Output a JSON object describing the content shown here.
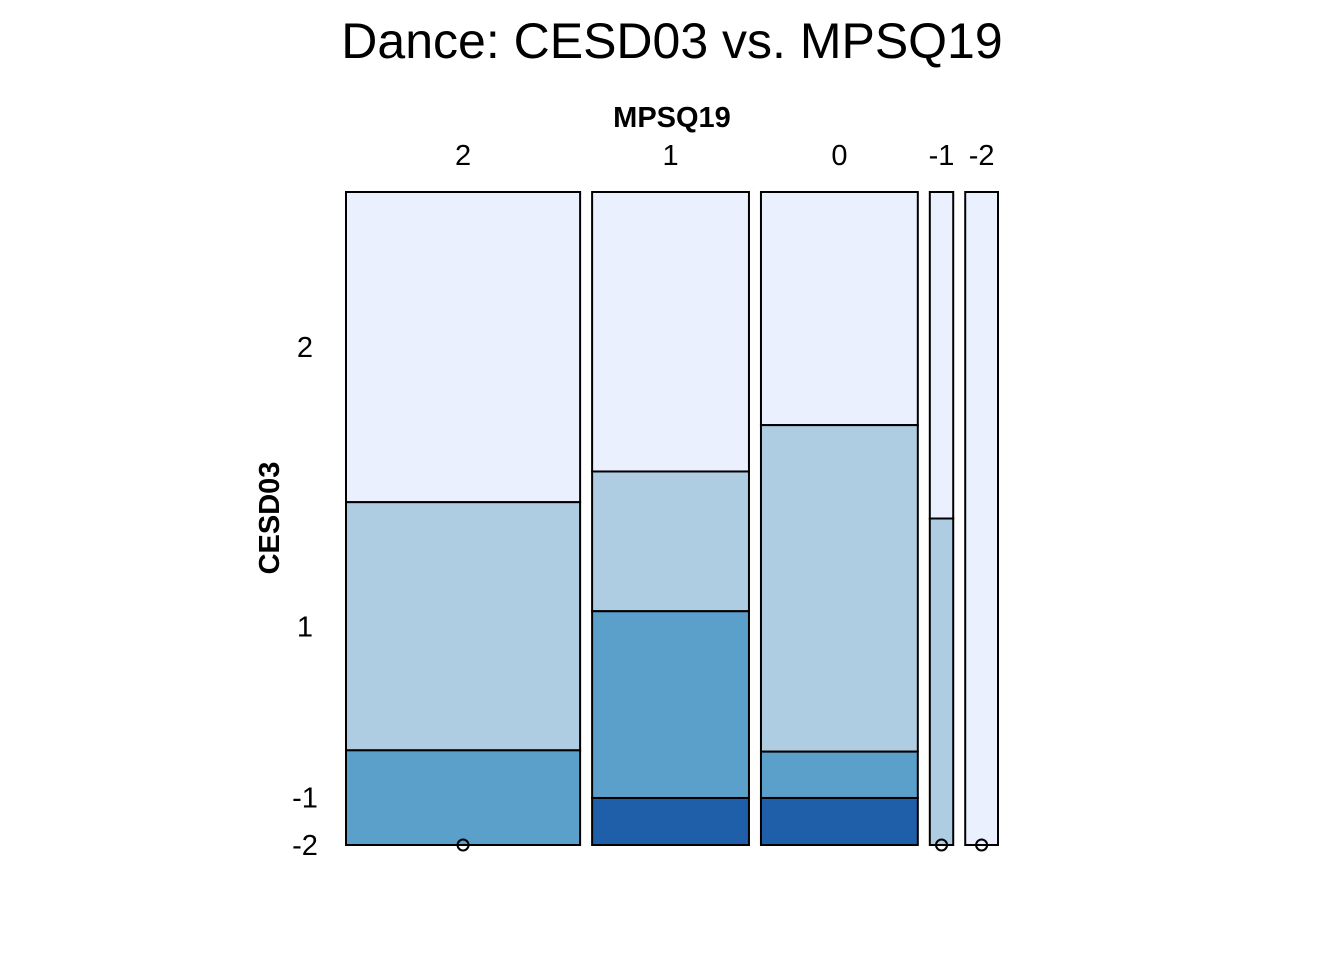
{
  "chart_data": {
    "type": "mosaic",
    "title": "Dance: CESD03 vs. MPSQ19",
    "xlabel": "MPSQ19",
    "ylabel": "CESD03",
    "column_categories": [
      "2",
      "1",
      "0",
      "-1",
      "-2"
    ],
    "row_categories": [
      "2",
      "1",
      "-1",
      "-2"
    ],
    "column_widths": [
      10,
      6.7,
      6.7,
      1,
      1.4
    ],
    "cells": [
      [
        0.475,
        0.38,
        0.145,
        0.0
      ],
      [
        0.428,
        0.214,
        0.286,
        0.072
      ],
      [
        0.357,
        0.5,
        0.071,
        0.072
      ],
      [
        0.5,
        0.5,
        0.0,
        0.0
      ],
      [
        1.0,
        0.0,
        0.0,
        0.0
      ]
    ],
    "colors": {
      "2": "#eaf0fd",
      "1": "#afcde2",
      "-1": "#5b9fcb",
      "-2": "#1f5ea8"
    },
    "empty_cell_marker": "o"
  }
}
